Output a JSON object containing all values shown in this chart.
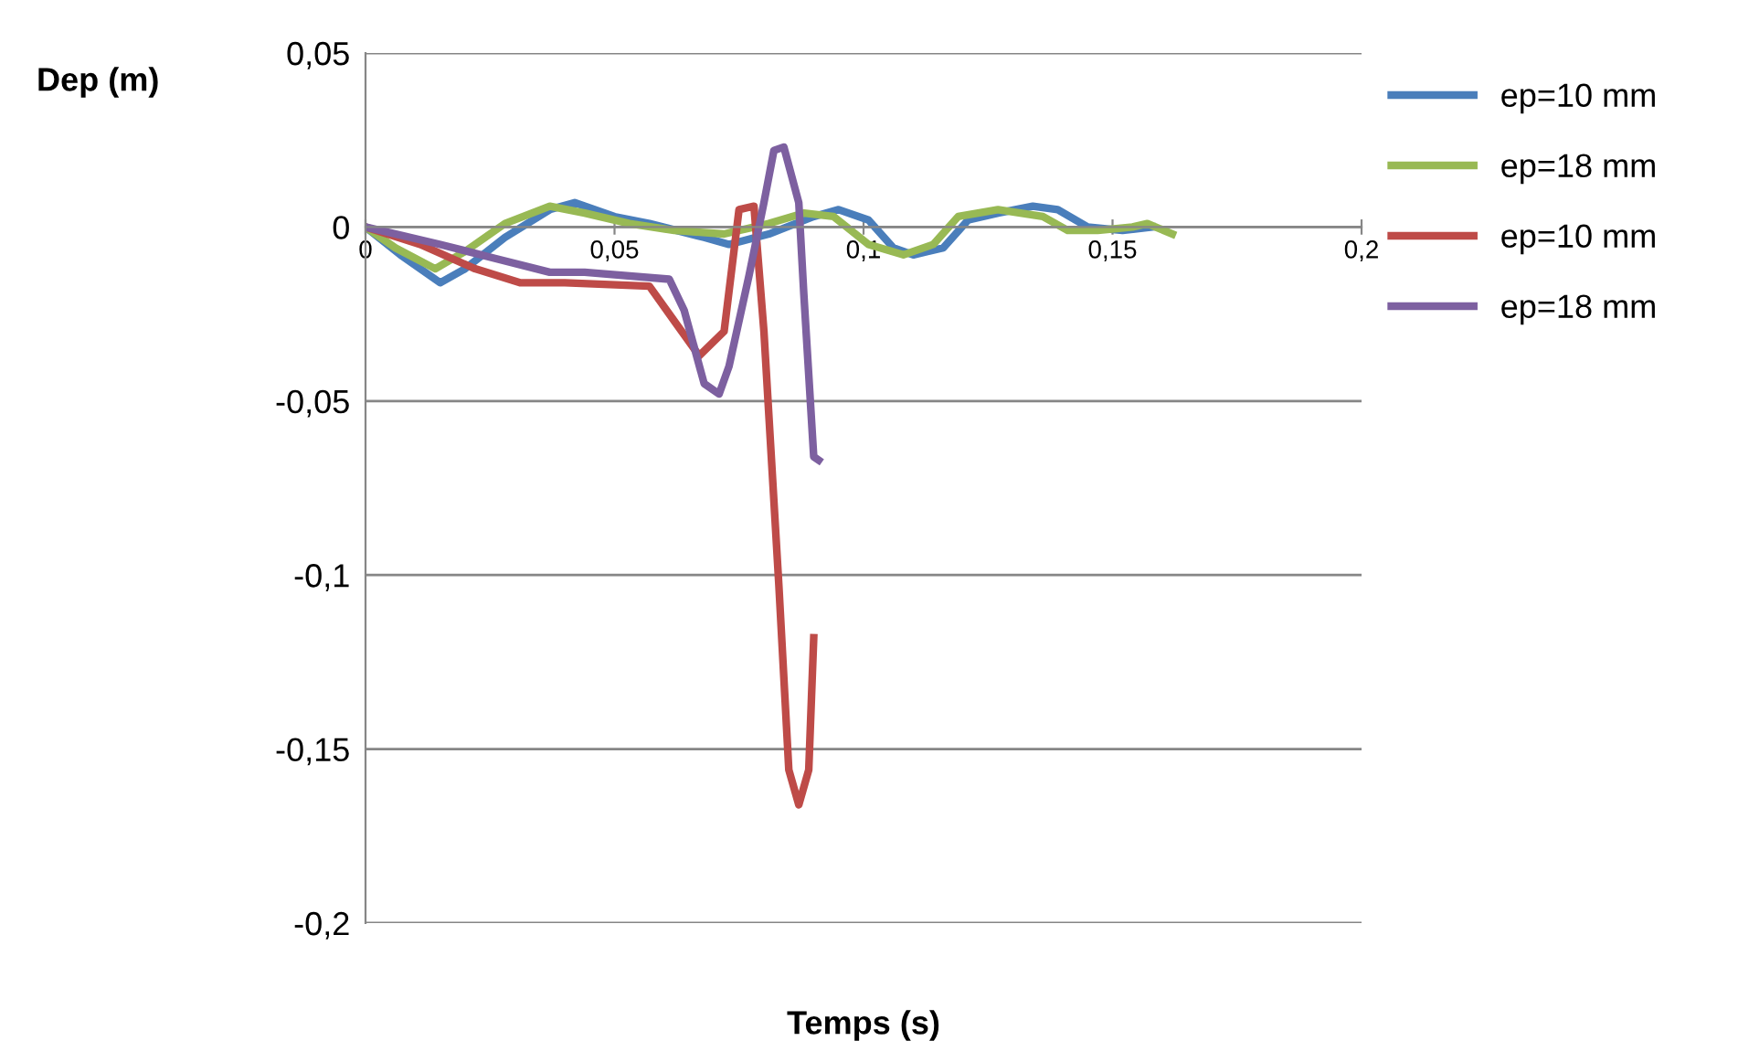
{
  "chart_data": {
    "type": "line",
    "xlabel": "Temps (s)",
    "ylabel": "Dep (m)",
    "xlim": [
      0,
      0.2
    ],
    "ylim": [
      -0.2,
      0.05
    ],
    "xticks": [
      {
        "value": 0,
        "label": "0"
      },
      {
        "value": 0.05,
        "label": "0,05"
      },
      {
        "value": 0.1,
        "label": "0,1"
      },
      {
        "value": 0.15,
        "label": "0,15"
      },
      {
        "value": 0.2,
        "label": "0,2"
      }
    ],
    "yticks": [
      {
        "value": -0.2,
        "label": "-0,2"
      },
      {
        "value": -0.15,
        "label": "-0,15"
      },
      {
        "value": -0.1,
        "label": "-0,1"
      },
      {
        "value": -0.05,
        "label": "-0,05"
      },
      {
        "value": 0,
        "label": "0"
      },
      {
        "value": 0.05,
        "label": "0,05"
      }
    ],
    "grid": "y",
    "legend": "right",
    "marker": "none",
    "line_style": "solid",
    "series": [
      {
        "name": "ep=10 mm",
        "color": "#4a7ebb",
        "x": [
          0,
          0.007,
          0.015,
          0.02,
          0.028,
          0.037,
          0.042,
          0.05,
          0.057,
          0.068,
          0.073,
          0.081,
          0.09,
          0.095,
          0.101,
          0.106,
          0.11,
          0.116,
          0.121,
          0.127,
          0.134,
          0.139,
          0.145,
          0.152,
          0.158
        ],
        "values": [
          0,
          -0.008,
          -0.016,
          -0.012,
          -0.003,
          0.005,
          0.007,
          0.003,
          0.001,
          -0.003,
          -0.005,
          -0.002,
          0.003,
          0.005,
          0.002,
          -0.006,
          -0.008,
          -0.006,
          0.002,
          0.004,
          0.006,
          0.005,
          0,
          -0.001,
          0
        ]
      },
      {
        "name": "ep=18 mm",
        "color": "#98b954",
        "x": [
          0,
          0.006,
          0.014,
          0.02,
          0.028,
          0.037,
          0.044,
          0.053,
          0.062,
          0.072,
          0.081,
          0.088,
          0.094,
          0.101,
          0.108,
          0.114,
          0.119,
          0.127,
          0.136,
          0.141,
          0.147,
          0.154,
          0.157,
          0.162
        ],
        "values": [
          0,
          -0.006,
          -0.012,
          -0.007,
          0.001,
          0.006,
          0.004,
          0.001,
          -0.001,
          -0.002,
          0.001,
          0.004,
          0.003,
          -0.005,
          -0.008,
          -0.005,
          0.003,
          0.005,
          0.003,
          -0.001,
          -0.001,
          0,
          0.001,
          -0.002
        ]
      },
      {
        "name": "ep=10 mm",
        "color": "#be4b48",
        "x": [
          0,
          0.011,
          0.022,
          0.031,
          0.04,
          0.057,
          0.062,
          0.067,
          0.072,
          0.075,
          0.078,
          0.08,
          0.083,
          0.085,
          0.087,
          0.089,
          0.09
        ],
        "values": [
          0,
          -0.005,
          -0.012,
          -0.016,
          -0.016,
          -0.017,
          -0.027,
          -0.037,
          -0.03,
          0.005,
          0.006,
          -0.03,
          -0.103,
          -0.156,
          -0.166,
          -0.156,
          -0.118
        ]
      },
      {
        "name": "ep=18 mm",
        "color": "#7d60a0",
        "x": [
          0,
          0.015,
          0.026,
          0.037,
          0.044,
          0.061,
          0.064,
          0.068,
          0.071,
          0.073,
          0.077,
          0.08,
          0.082,
          0.084,
          0.087,
          0.088,
          0.09,
          0.091
        ],
        "values": [
          0,
          -0.005,
          -0.009,
          -0.013,
          -0.013,
          -0.015,
          -0.024,
          -0.045,
          -0.048,
          -0.04,
          -0.014,
          0.007,
          0.022,
          0.023,
          0.007,
          -0.019,
          -0.066,
          -0.067
        ]
      }
    ]
  }
}
